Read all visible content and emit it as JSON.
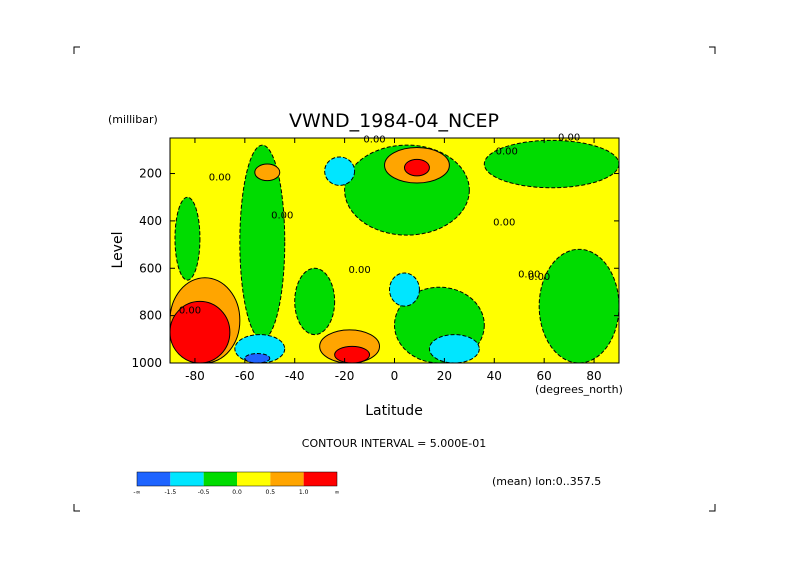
{
  "chart_data": {
    "type": "heatmap",
    "title": "VWND_1984-04_NCEP",
    "ylabel": "Level",
    "yunit": "(millibar)",
    "xlabel": "Latitude",
    "xunit": "(degrees_north)",
    "xlim": [
      -90,
      90
    ],
    "ylim": [
      1000,
      50
    ],
    "x_ticks": [
      -80,
      -60,
      -40,
      -20,
      0,
      20,
      40,
      60,
      80
    ],
    "x_tick_labels": [
      "-80",
      "-60",
      "-40",
      "-20",
      "0",
      "20",
      "40",
      "60",
      "80"
    ],
    "y_ticks": [
      200,
      400,
      600,
      800,
      1000
    ],
    "y_tick_labels": [
      "200",
      "400",
      "600",
      "800",
      "1000"
    ],
    "contour_interval_text": "CONTOUR INTERVAL = 5.000E-01",
    "footnote": "(mean) lon:0..357.5",
    "colorbar": {
      "levels": [
        -1.5,
        -0.5,
        0.0,
        0.5,
        1.0
      ],
      "tick_labels": [
        "-∞",
        "-1.5",
        "-0.5",
        "0.0",
        "0.5",
        "1.0",
        "∞"
      ],
      "colors": [
        "#1e64ff",
        "#00e6ff",
        "#00dc00",
        "#ffff00",
        "#ffa500",
        "#ff0000"
      ]
    },
    "contour_labels": [
      {
        "text": "0.00",
        "lat": -70,
        "lev": 230
      },
      {
        "text": "0.00",
        "lat": -45,
        "lev": 390
      },
      {
        "text": "0.00",
        "lat": -14,
        "lev": 620
      },
      {
        "text": "0.00",
        "lat": -8,
        "lev": 70
      },
      {
        "text": "0.00",
        "lat": 44,
        "lev": 420
      },
      {
        "text": "0.00",
        "lat": 58,
        "lev": 650
      },
      {
        "text": "0.00",
        "lat": 54,
        "lev": 640
      },
      {
        "text": "0.00",
        "lat": 70,
        "lev": 60
      },
      {
        "text": "0.00",
        "lat": 45,
        "lev": 120
      },
      {
        "text": "0.00",
        "lat": -82,
        "lev": 790
      }
    ],
    "regions": [
      {
        "value": 0.25,
        "class": "0.0 to 0.5",
        "lat": [
          -90,
          90
        ],
        "lev": [
          50,
          1000
        ]
      },
      {
        "value": -0.25,
        "class": "-0.5 to 0.0",
        "lat": [
          -88,
          -78
        ],
        "lev": [
          300,
          650
        ]
      },
      {
        "value": -0.25,
        "class": "-0.5 to 0.0",
        "lat": [
          -62,
          -44
        ],
        "lev": [
          80,
          900
        ]
      },
      {
        "value": -0.25,
        "class": "-0.5 to 0.0",
        "lat": [
          -40,
          -24
        ],
        "lev": [
          600,
          880
        ]
      },
      {
        "value": -0.25,
        "class": "-0.5 to 0.0",
        "lat": [
          -20,
          30
        ],
        "lev": [
          80,
          460
        ]
      },
      {
        "value": -0.25,
        "class": "-0.5 to 0.0",
        "lat": [
          36,
          90
        ],
        "lev": [
          60,
          260
        ]
      },
      {
        "value": -0.25,
        "class": "-0.5 to 0.0",
        "lat": [
          58,
          90
        ],
        "lev": [
          520,
          1000
        ]
      },
      {
        "value": -0.25,
        "class": "-0.5 to 0.0",
        "lat": [
          0,
          36
        ],
        "lev": [
          680,
          1000
        ]
      },
      {
        "value": 0.75,
        "class": "0.5 to 1.0",
        "lat": [
          -56,
          -46
        ],
        "lev": [
          160,
          230
        ]
      },
      {
        "value": 0.75,
        "class": "0.5 to 1.0",
        "lat": [
          -4,
          22
        ],
        "lev": [
          90,
          240
        ]
      },
      {
        "value": 0.75,
        "class": "0.5 to 1.0",
        "lat": [
          -90,
          -62
        ],
        "lev": [
          640,
          1000
        ]
      },
      {
        "value": 0.75,
        "class": "0.5 to 1.0",
        "lat": [
          -30,
          -6
        ],
        "lev": [
          860,
          1000
        ]
      },
      {
        "value": 1.25,
        "class": "1.0 to 1.5",
        "lat": [
          4,
          14
        ],
        "lev": [
          140,
          210
        ]
      },
      {
        "value": 1.25,
        "class": "1.0 to 1.5",
        "lat": [
          -90,
          -66
        ],
        "lev": [
          740,
          1000
        ]
      },
      {
        "value": 1.25,
        "class": "1.0 to 1.5",
        "lat": [
          -24,
          -10
        ],
        "lev": [
          930,
          1000
        ]
      },
      {
        "value": -0.75,
        "class": "-1.5 to -0.5",
        "lat": [
          -28,
          -16
        ],
        "lev": [
          130,
          250
        ]
      },
      {
        "value": -0.75,
        "class": "-1.5 to -0.5",
        "lat": [
          -2,
          10
        ],
        "lev": [
          620,
          760
        ]
      },
      {
        "value": -0.75,
        "class": "-1.5 to -0.5",
        "lat": [
          -64,
          -44
        ],
        "lev": [
          880,
          1000
        ]
      },
      {
        "value": -0.75,
        "class": "-1.5 to -0.5",
        "lat": [
          14,
          34
        ],
        "lev": [
          880,
          1000
        ]
      },
      {
        "value": -1.75,
        "class": "below -1.5",
        "lat": [
          -60,
          -50
        ],
        "lev": [
          960,
          1000
        ]
      }
    ]
  }
}
